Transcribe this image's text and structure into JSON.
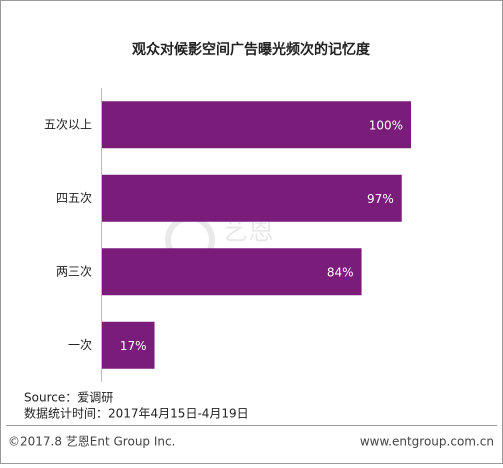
{
  "chart_data": {
    "type": "bar",
    "orientation": "horizontal",
    "title": "观众对候影空间广告曝光频次的记忆度",
    "categories": [
      "五次以上",
      "四五次",
      "两三次",
      "一次"
    ],
    "values": [
      100,
      97,
      84,
      17
    ],
    "value_labels": [
      "100%",
      "97%",
      "84%",
      "17%"
    ],
    "color": "#7a1c7a",
    "source": "Source：爱调研",
    "date_note": "数据统计时间：2017年4月15日-4月19日",
    "copyright": "©2017.8 艺恩Ent Group Inc.",
    "website": "www.entgroup.com.cn",
    "watermark": {
      "cn": "艺恩",
      "en": "entgroup"
    }
  }
}
